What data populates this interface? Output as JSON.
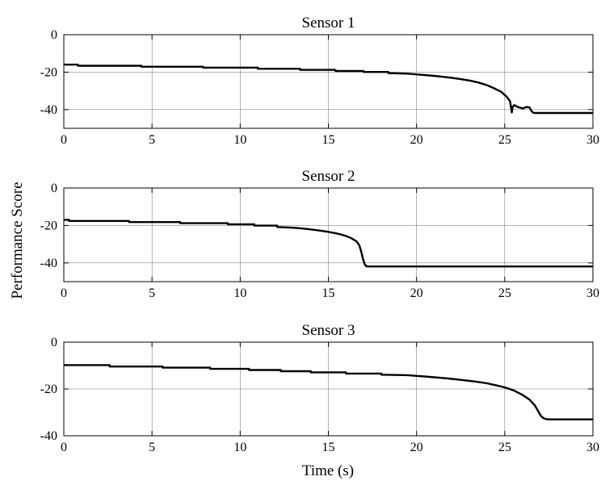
{
  "y_axis_label": "Performance Score",
  "x_axis_label": "Time (s)",
  "chart_data": [
    {
      "type": "line",
      "title": "Sensor 1",
      "xlim": [
        0,
        30
      ],
      "ylim": [
        -50,
        0
      ],
      "x_ticks": [
        0,
        5,
        10,
        15,
        20,
        25,
        30
      ],
      "y_ticks": [
        0,
        -20,
        -40
      ],
      "grid": true,
      "series": [
        {
          "color": "#000000",
          "x": [
            0,
            0.8,
            0.8,
            4.4,
            4.4,
            7.9,
            7.9,
            11.0,
            11.0,
            13.4,
            13.4,
            15.4,
            15.4,
            17.0,
            17.0,
            18.4,
            18.4,
            19.5,
            20.0,
            20.5,
            21.0,
            21.5,
            22.0,
            22.5,
            23.0,
            23.5,
            24.0,
            24.4,
            24.8,
            25.1,
            25.3,
            25.4,
            25.45,
            25.55,
            25.6,
            25.8,
            26.0,
            26.1,
            26.2,
            26.4,
            26.5,
            26.6,
            26.7,
            27.0,
            28.0,
            30.0
          ],
          "y": [
            -16,
            -16,
            -16.6,
            -16.6,
            -17.1,
            -17.1,
            -17.6,
            -17.6,
            -18.2,
            -18.2,
            -18.8,
            -18.8,
            -19.4,
            -19.4,
            -19.9,
            -19.9,
            -20.5,
            -20.8,
            -21.2,
            -21.6,
            -22.0,
            -22.5,
            -23.0,
            -23.7,
            -24.5,
            -25.5,
            -27.0,
            -28.6,
            -30.5,
            -33.0,
            -35.5,
            -41.5,
            -38.5,
            -37.5,
            -38.0,
            -38.8,
            -39.3,
            -39.2,
            -38.6,
            -38.8,
            -40.5,
            -41.6,
            -41.8,
            -41.8,
            -41.8,
            -41.8
          ]
        }
      ]
    },
    {
      "type": "line",
      "title": "Sensor 2",
      "xlim": [
        0,
        30
      ],
      "ylim": [
        -50,
        0
      ],
      "x_ticks": [
        0,
        5,
        10,
        15,
        20,
        25,
        30
      ],
      "y_ticks": [
        0,
        -20,
        -40
      ],
      "grid": true,
      "series": [
        {
          "color": "#000000",
          "x": [
            0,
            0.3,
            0.3,
            3.7,
            3.7,
            6.6,
            6.6,
            9.3,
            9.3,
            10.8,
            10.8,
            12.1,
            12.1,
            13.0,
            13.5,
            14.0,
            14.5,
            15.0,
            15.5,
            16.0,
            16.3,
            16.6,
            16.75,
            16.85,
            16.95,
            17.05,
            17.15,
            17.3,
            20.0,
            25.0,
            30.0
          ],
          "y": [
            -17,
            -17,
            -17.6,
            -17.6,
            -18.2,
            -18.2,
            -18.8,
            -18.8,
            -19.4,
            -19.4,
            -20.1,
            -20.1,
            -20.8,
            -21.2,
            -21.6,
            -22.1,
            -22.7,
            -23.4,
            -24.3,
            -25.6,
            -26.8,
            -28.5,
            -30.5,
            -33.5,
            -37.5,
            -40.5,
            -41.8,
            -41.9,
            -41.9,
            -41.9,
            -41.9
          ]
        }
      ]
    },
    {
      "type": "line",
      "title": "Sensor 3",
      "xlim": [
        0,
        30
      ],
      "ylim": [
        -40,
        0
      ],
      "x_ticks": [
        0,
        5,
        10,
        15,
        20,
        25,
        30
      ],
      "y_ticks": [
        0,
        -20,
        -40
      ],
      "grid": true,
      "series": [
        {
          "color": "#000000",
          "x": [
            0,
            2.6,
            2.6,
            5.6,
            5.6,
            8.3,
            8.3,
            10.5,
            10.5,
            12.3,
            12.3,
            14.0,
            14.0,
            16.0,
            16.0,
            18.0,
            18.0,
            19.5,
            20.0,
            20.5,
            21.0,
            21.5,
            22.0,
            22.5,
            23.0,
            23.5,
            24.0,
            24.5,
            25.0,
            25.5,
            26.0,
            26.4,
            26.7,
            26.9,
            27.05,
            27.2,
            27.35,
            27.6,
            28.5,
            30.0
          ],
          "y": [
            -9.8,
            -9.8,
            -10.4,
            -10.4,
            -10.9,
            -10.9,
            -11.4,
            -11.4,
            -11.9,
            -11.9,
            -12.4,
            -12.4,
            -12.9,
            -12.9,
            -13.4,
            -13.4,
            -13.9,
            -14.1,
            -14.4,
            -14.7,
            -15.0,
            -15.3,
            -15.7,
            -16.1,
            -16.5,
            -17.0,
            -17.6,
            -18.4,
            -19.3,
            -20.6,
            -22.5,
            -24.5,
            -27.0,
            -29.5,
            -31.5,
            -32.5,
            -32.9,
            -33.0,
            -33.0,
            -33.0
          ]
        }
      ]
    }
  ]
}
